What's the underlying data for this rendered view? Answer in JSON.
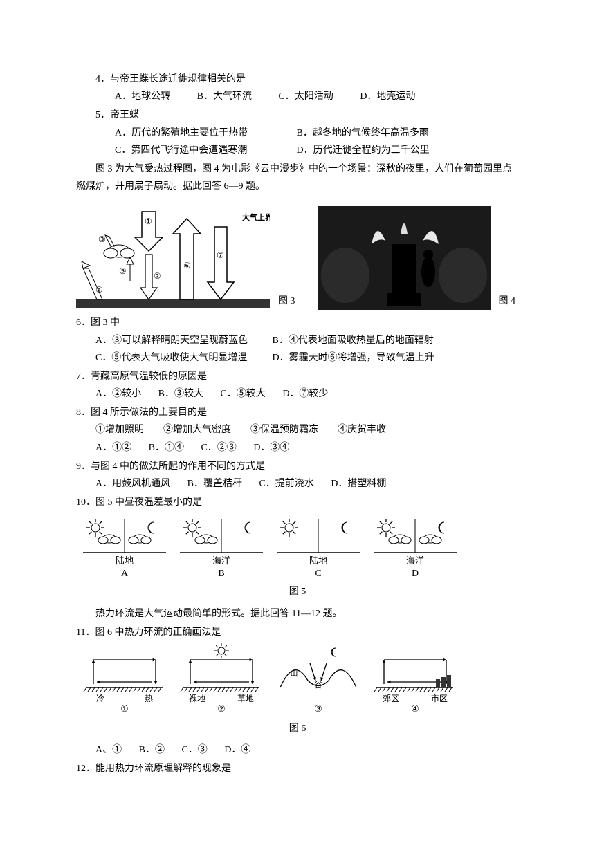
{
  "q4": {
    "stem": "4．与帝王蝶长途迁徙规律相关的是",
    "A": "A．地球公转",
    "B": "B．大气环流",
    "C": "C．太阳活动",
    "D": "D．地壳运动"
  },
  "q5": {
    "stem": "5．帝王蝶",
    "A": "A．历代的繁殖地主要位于热带",
    "B": "B．越冬地的气候终年高温多雨",
    "C": "C．第四代飞行途中会遭遇寒潮",
    "D": "D．历代迁徙全程约为三千公里"
  },
  "passage_6_9": "图 3 为大气受热过程图，图 4 为电影《云中漫步》中的一个场景：深秋的夜里，人们在葡萄园里点燃煤炉，并用扇子扇动。据此回答 6—9 题。",
  "fig3": {
    "label": "图 3",
    "top_label": "大气上界",
    "nums": [
      "①",
      "②",
      "③",
      "④",
      "⑤",
      "⑥",
      "⑦"
    ],
    "stroke": "#000000",
    "fill_light": "#ffffff",
    "hatch": "#555555"
  },
  "fig4": {
    "label": "图 4"
  },
  "q6": {
    "stem": "6．图 3 中",
    "A": "A．③可以解释晴朗天空呈现蔚蓝色",
    "B": "B．④代表地面吸收热量后的地面辐射",
    "C": "C．⑤代表大气吸收使大气明显增温",
    "D": "D．雾霾天时⑥将增强，导致气温上升"
  },
  "q7": {
    "stem": "7．青藏高原气温较低的原因是",
    "A": "A．②较小",
    "B": "B．③较大",
    "C": "C．⑤较大",
    "D": "D．⑦较少"
  },
  "q8": {
    "stem": "8．图 4 所示做法的主要目的是",
    "sub": "①增加照明　　②增加大气密度　　③保温预防霜冻　　④庆贺丰收",
    "A": "A．①②",
    "B": "B．①④",
    "C": "C．②③",
    "D": "D．③④"
  },
  "q9": {
    "stem": "9．与图 4 中的做法所起的作用不同的方式是",
    "A": "A．用鼓风机通风",
    "B": "B．覆盖秸秆",
    "C": "C．提前浇水",
    "D": "D．搭塑料棚"
  },
  "q10": {
    "stem": "10．图 5 中昼夜温差最小的是"
  },
  "fig5": {
    "label": "图 5",
    "panels": [
      {
        "letter": "A",
        "surf": "陆地",
        "day_cloud": true,
        "night_cloud": true
      },
      {
        "letter": "B",
        "surf": "海洋",
        "day_cloud": true,
        "night_cloud": false
      },
      {
        "letter": "C",
        "surf": "陆地",
        "day_cloud": false,
        "night_cloud": false
      },
      {
        "letter": "D",
        "surf": "海洋",
        "day_cloud": true,
        "night_cloud": true
      }
    ],
    "stroke": "#000000"
  },
  "passage_11_12": "热力环流是大气运动最简单的形式。据此回答 11—12 题。",
  "q11": {
    "stem": "11．图 6 中热力环流的正确画法是",
    "A": "A、①",
    "B": "B．②",
    "C": "C．③",
    "D": "D．④"
  },
  "fig6": {
    "label": "图 6",
    "panels": [
      {
        "num": "①",
        "left": "冷",
        "right": "热"
      },
      {
        "num": "②",
        "left": "裸地",
        "right": "草地",
        "sun": true
      },
      {
        "num": "③",
        "center": "谷",
        "moon": true,
        "mountains": true,
        "m": "山"
      },
      {
        "num": "④",
        "left": "郊区",
        "right": "市区",
        "city": true
      }
    ],
    "stroke": "#000000"
  },
  "q12": {
    "stem": "12．能用热力环流原理解释的现象是"
  }
}
